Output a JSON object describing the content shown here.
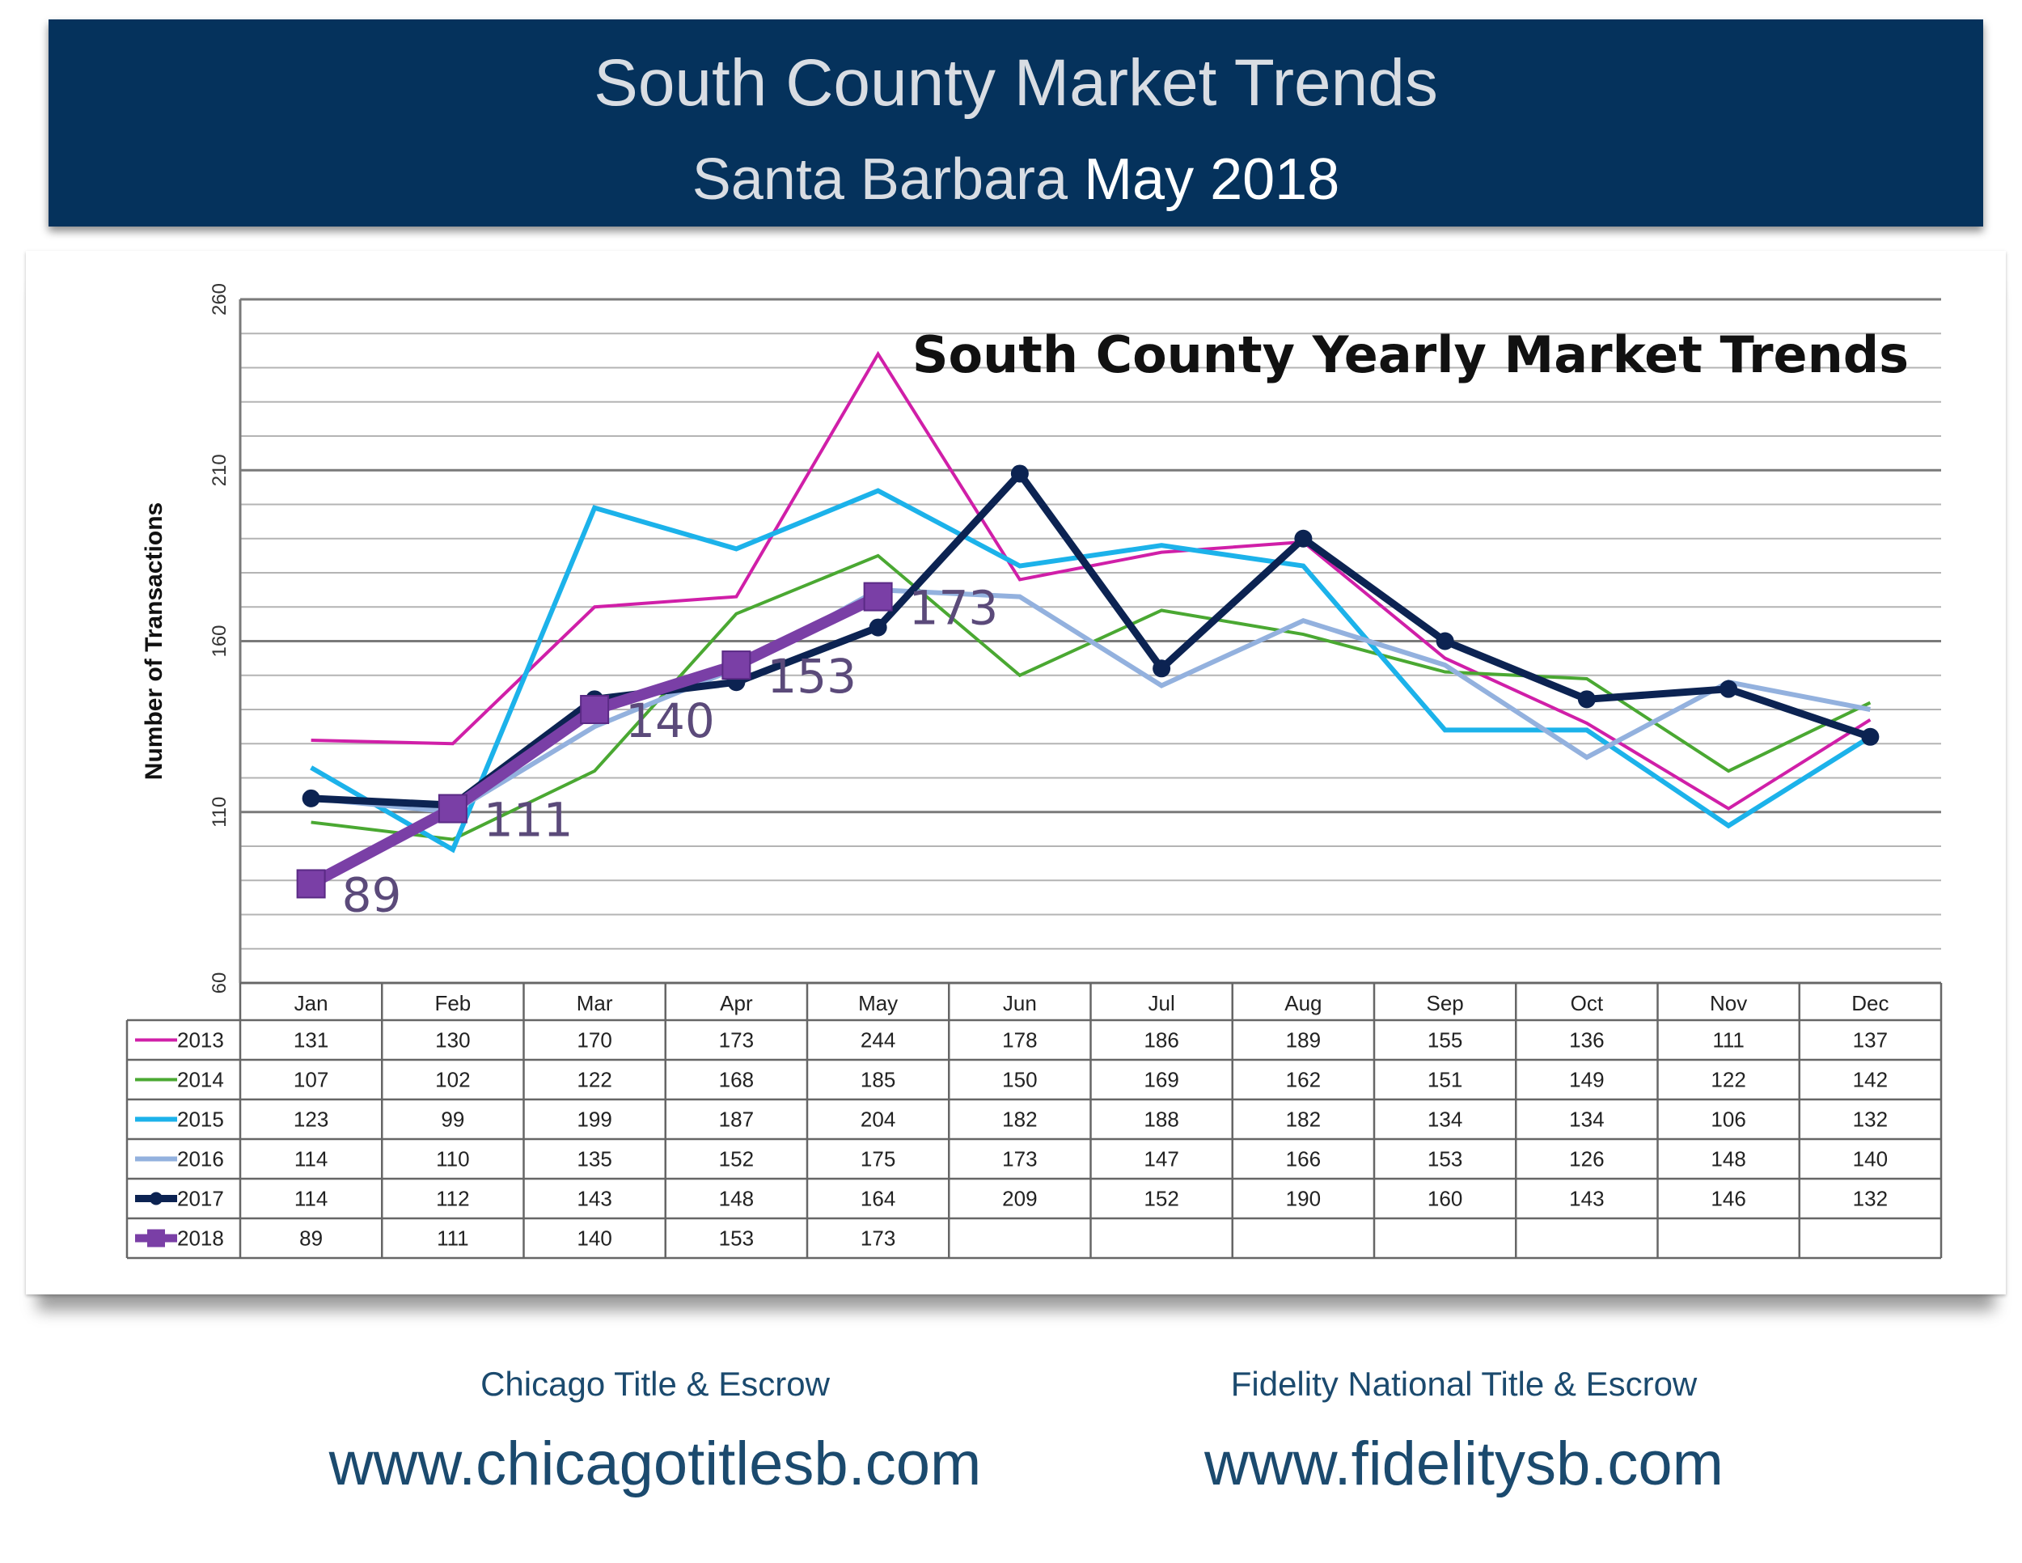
{
  "header": {
    "title": "South County Market Trends",
    "subtitle_location": "Santa Barbara",
    "subtitle_date": "May 2018"
  },
  "chart_data": {
    "type": "line",
    "title": "South County Yearly Market Trends",
    "ylabel": "Number of Transactions",
    "xlabel": "",
    "ylim": [
      60,
      260
    ],
    "yticks": [
      60,
      110,
      160,
      210,
      260
    ],
    "grid": true,
    "legend": "table-below",
    "categories": [
      "Jan",
      "Feb",
      "Mar",
      "Apr",
      "May",
      "Jun",
      "Jul",
      "Aug",
      "Sep",
      "Oct",
      "Nov",
      "Dec"
    ],
    "series": [
      {
        "name": "2013",
        "color": "#d01fa8",
        "values": [
          131,
          130,
          170,
          173,
          244,
          178,
          186,
          189,
          155,
          136,
          111,
          137
        ]
      },
      {
        "name": "2014",
        "color": "#4aa832",
        "values": [
          107,
          102,
          122,
          168,
          185,
          150,
          169,
          162,
          151,
          149,
          122,
          142
        ]
      },
      {
        "name": "2015",
        "color": "#1cb2ea",
        "values": [
          123,
          99,
          199,
          187,
          204,
          182,
          188,
          182,
          134,
          134,
          106,
          132
        ]
      },
      {
        "name": "2016",
        "color": "#93b1de",
        "values": [
          114,
          110,
          135,
          152,
          175,
          173,
          147,
          166,
          153,
          126,
          148,
          140
        ]
      },
      {
        "name": "2017",
        "color": "#0c2352",
        "marker": "circle",
        "values": [
          114,
          112,
          143,
          148,
          164,
          209,
          152,
          190,
          160,
          143,
          146,
          132
        ]
      },
      {
        "name": "2018",
        "color": "#7a3fa6",
        "marker": "square",
        "values": [
          89,
          111,
          140,
          153,
          173,
          null,
          null,
          null,
          null,
          null,
          null,
          null
        ]
      }
    ]
  },
  "footer": {
    "left_name": "Chicago Title & Escrow",
    "left_url": "www.chicagotitlesb.com",
    "right_name": "Fidelity National Title & Escrow",
    "right_url": "www.fidelitysb.com"
  }
}
